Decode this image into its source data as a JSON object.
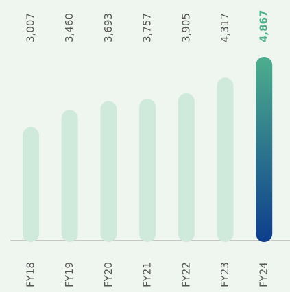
{
  "chart_data": {
    "type": "bar",
    "categories": [
      "FY18",
      "FY19",
      "FY20",
      "FY21",
      "FY22",
      "FY23",
      "FY24"
    ],
    "values": [
      3007,
      3460,
      3693,
      3757,
      3905,
      4317,
      4867
    ],
    "value_labels": [
      "3,007",
      "3,460",
      "3,693",
      "3,757",
      "3,905",
      "4,317",
      "4,867"
    ],
    "color": "#cfe9da",
    "highlight_index": 6,
    "highlight_gradient": [
      "#4dae8d",
      "#0d3d8d"
    ],
    "highlight_label_color": "#4cb287"
  }
}
